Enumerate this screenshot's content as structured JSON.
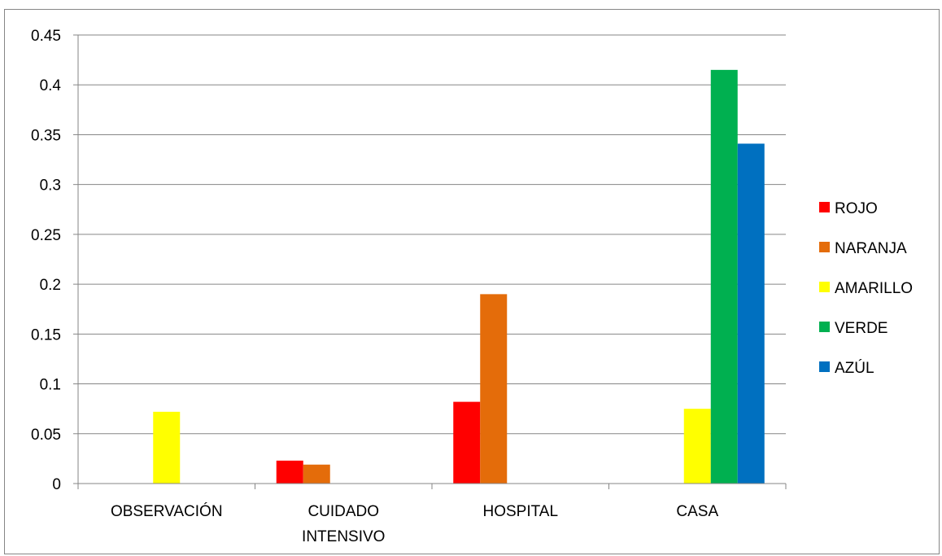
{
  "chart_data": {
    "type": "bar",
    "categories": [
      [
        "OBSERVACIÓN"
      ],
      [
        "CUIDADO",
        "INTENSIVO"
      ],
      [
        "HOSPITAL"
      ],
      [
        "CASA"
      ]
    ],
    "series": [
      {
        "name": "ROJO",
        "color": "#FF0000",
        "values": [
          0,
          0.023,
          0.082,
          0
        ]
      },
      {
        "name": "NARANJA",
        "color": "#E46C0A",
        "values": [
          0,
          0.019,
          0.19,
          0
        ]
      },
      {
        "name": "AMARILLO",
        "color": "#FFFF00",
        "values": [
          0.072,
          0,
          0,
          0.075
        ]
      },
      {
        "name": "VERDE",
        "color": "#00B050",
        "values": [
          0,
          0,
          0,
          0.415
        ]
      },
      {
        "name": "AZÚL",
        "color": "#0070C0",
        "values": [
          0,
          0,
          0,
          0.341
        ]
      }
    ],
    "yticks": [
      "0",
      "0.05",
      "0.1",
      "0.15",
      "0.2",
      "0.25",
      "0.3",
      "0.35",
      "0.4",
      "0.45"
    ],
    "ylim": [
      0,
      0.45
    ],
    "grid": true,
    "legend_position": "right",
    "title": "",
    "xlabel": "",
    "ylabel": ""
  }
}
